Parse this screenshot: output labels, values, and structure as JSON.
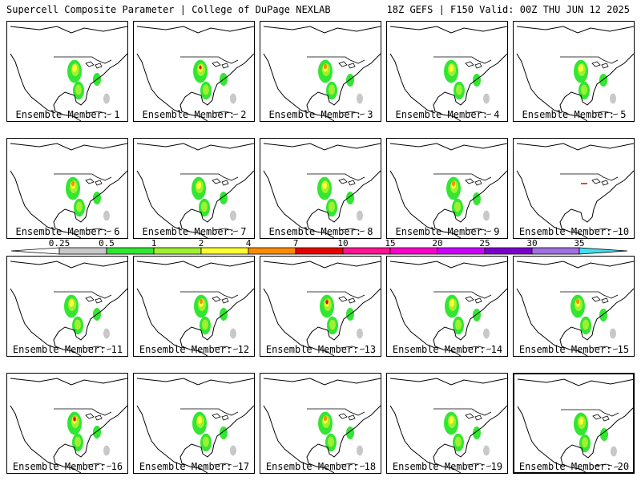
{
  "header": {
    "left_title": "Supercell Composite Parameter | College of DuPage NEXLAB",
    "right_title": "18Z GEFS | F150 Valid: 00Z THU JUN 12 2025"
  },
  "caption_prefix": "Ensemble Member: ",
  "members": [
    {
      "id": 1,
      "label": "Ensemble Member: 1"
    },
    {
      "id": 2,
      "label": "Ensemble Member: 2"
    },
    {
      "id": 3,
      "label": "Ensemble Member: 3"
    },
    {
      "id": 4,
      "label": "Ensemble Member: 4"
    },
    {
      "id": 5,
      "label": "Ensemble Member: 5"
    },
    {
      "id": 6,
      "label": "Ensemble Member: 6"
    },
    {
      "id": 7,
      "label": "Ensemble Member: 7"
    },
    {
      "id": 8,
      "label": "Ensemble Member: 8"
    },
    {
      "id": 9,
      "label": "Ensemble Member: 9"
    },
    {
      "id": 10,
      "label": "Ensemble Member: 10"
    },
    {
      "id": 11,
      "label": "Ensemble Member: 11"
    },
    {
      "id": 12,
      "label": "Ensemble Member: 12"
    },
    {
      "id": 13,
      "label": "Ensemble Member: 13"
    },
    {
      "id": 14,
      "label": "Ensemble Member: 14"
    },
    {
      "id": 15,
      "label": "Ensemble Member: 15"
    },
    {
      "id": 16,
      "label": "Ensemble Member: 16"
    },
    {
      "id": 17,
      "label": "Ensemble Member: 17"
    },
    {
      "id": 18,
      "label": "Ensemble Member: 18"
    },
    {
      "id": 19,
      "label": "Ensemble Member: 19"
    },
    {
      "id": 20,
      "label": "Ensemble Member: 20"
    }
  ],
  "colorbar": {
    "labels": [
      "0.25",
      "0.5",
      "1",
      "2",
      "4",
      "7",
      "10",
      "15",
      "20",
      "25",
      "30",
      "35"
    ],
    "colors": [
      "#ffffff",
      "#c8c8c8",
      "#32e632",
      "#a0f032",
      "#ffff32",
      "#ff8c00",
      "#e60000",
      "#ff1493",
      "#ff00cc",
      "#cc00ff",
      "#7a00cc",
      "#a070e0",
      "#40e0f0"
    ]
  },
  "colors": {
    "weak": "#c8c8c8",
    "low": "#32e632",
    "mid": "#a0f032",
    "high": "#ffff32",
    "orange": "#ff8c00",
    "red": "#e60000"
  }
}
